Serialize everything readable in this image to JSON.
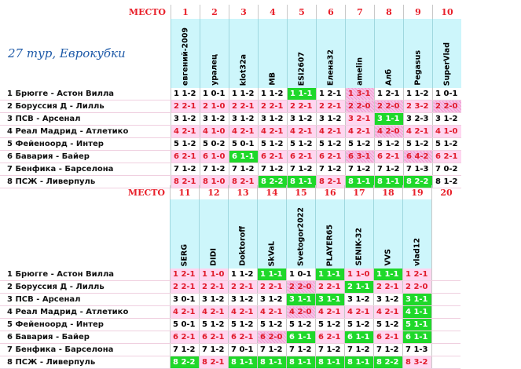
{
  "title": "27 тур,    Еврокубки",
  "mesto_label": "МЕСТО",
  "matches": [
    "1 Брюгге - Астон Вилла",
    "2 Боруссия Д - Лилль",
    "3 ПСВ - Арсенал",
    "4 Реал Мадрид - Атлетико",
    "5 Фейеноорд - Интер",
    "6 Бавария - Байер",
    "7 Бенфика - Барселона",
    "8 ПСЖ - Ливерпуль"
  ],
  "block1": {
    "places": [
      "1",
      "2",
      "3",
      "4",
      "5",
      "6",
      "7",
      "8",
      "9",
      "10"
    ],
    "players": [
      "евгений-2009",
      "уралец",
      "klot32a",
      "MB",
      "ESI2607",
      "Елена32",
      "amelin",
      "Алб",
      "Pegasus",
      "SuperVlad"
    ],
    "rows": [
      [
        [
          "1 1-2",
          "w"
        ],
        [
          "1 0-1",
          "w"
        ],
        [
          "1 1-2",
          "w"
        ],
        [
          "1 1-2",
          "w"
        ],
        [
          "1 1-1",
          "g"
        ],
        [
          "1 2-1",
          "w"
        ],
        [
          "1 3-1",
          "h"
        ],
        [
          "1 2-1",
          "w"
        ],
        [
          "1 1-2",
          "w"
        ],
        [
          "1 0-1",
          "w"
        ]
      ],
      [
        [
          "2 2-1",
          "p"
        ],
        [
          "2 1-0",
          "p"
        ],
        [
          "2 2-1",
          "p"
        ],
        [
          "2 2-1",
          "p"
        ],
        [
          "2 2-1",
          "p"
        ],
        [
          "2 2-1",
          "p"
        ],
        [
          "2 2-0",
          "h"
        ],
        [
          "2 2-0",
          "h"
        ],
        [
          "2 3-2",
          "p"
        ],
        [
          "2 2-0",
          "h"
        ]
      ],
      [
        [
          "3 1-2",
          "w"
        ],
        [
          "3 1-2",
          "w"
        ],
        [
          "3 1-2",
          "w"
        ],
        [
          "3 1-2",
          "w"
        ],
        [
          "3 1-2",
          "w"
        ],
        [
          "3 1-2",
          "w"
        ],
        [
          "3 2-1",
          "p"
        ],
        [
          "3 1-1",
          "g"
        ],
        [
          "3 2-3",
          "w"
        ],
        [
          "3 1-2",
          "w"
        ]
      ],
      [
        [
          "4 2-1",
          "p"
        ],
        [
          "4 1-0",
          "p"
        ],
        [
          "4 2-1",
          "p"
        ],
        [
          "4 2-1",
          "p"
        ],
        [
          "4 2-1",
          "p"
        ],
        [
          "4 2-1",
          "p"
        ],
        [
          "4 2-1",
          "p"
        ],
        [
          "4 2-0",
          "h"
        ],
        [
          "4 2-1",
          "p"
        ],
        [
          "4 1-0",
          "p"
        ]
      ],
      [
        [
          "5 1-2",
          "w"
        ],
        [
          "5 0-2",
          "w"
        ],
        [
          "5 0-1",
          "w"
        ],
        [
          "5 1-2",
          "w"
        ],
        [
          "5 1-2",
          "w"
        ],
        [
          "5 1-2",
          "w"
        ],
        [
          "5 1-2",
          "w"
        ],
        [
          "5 1-2",
          "w"
        ],
        [
          "5 1-2",
          "w"
        ],
        [
          "5 1-2",
          "w"
        ]
      ],
      [
        [
          "6 2-1",
          "p"
        ],
        [
          "6 1-0",
          "p"
        ],
        [
          "6 1-1",
          "g"
        ],
        [
          "6 2-1",
          "p"
        ],
        [
          "6 2-1",
          "p"
        ],
        [
          "6 2-1",
          "p"
        ],
        [
          "6 3-1",
          "h"
        ],
        [
          "6 2-1",
          "p"
        ],
        [
          "6 4-2",
          "h"
        ],
        [
          "6 2-1",
          "p"
        ]
      ],
      [
        [
          "7 1-2",
          "w"
        ],
        [
          "7 1-2",
          "w"
        ],
        [
          "7 1-2",
          "w"
        ],
        [
          "7 1-2",
          "w"
        ],
        [
          "7 1-2",
          "w"
        ],
        [
          "7 1-2",
          "w"
        ],
        [
          "7 1-2",
          "w"
        ],
        [
          "7 1-2",
          "w"
        ],
        [
          "7 1-3",
          "w"
        ],
        [
          "7 0-2",
          "w"
        ]
      ],
      [
        [
          "8 2-1",
          "p"
        ],
        [
          "8 1-0",
          "p"
        ],
        [
          "8 2-1",
          "p"
        ],
        [
          "8 2-2",
          "g"
        ],
        [
          "8 1-1",
          "g"
        ],
        [
          "8 2-1",
          "p"
        ],
        [
          "8 1-1",
          "g"
        ],
        [
          "8 1-1",
          "g"
        ],
        [
          "8 2-2",
          "g"
        ],
        [
          "8 1-2",
          "w"
        ]
      ]
    ]
  },
  "block2": {
    "places": [
      "11",
      "12",
      "13",
      "14",
      "15",
      "16",
      "17",
      "18",
      "19",
      "20"
    ],
    "players": [
      "SERG",
      "DIDI",
      "Doktoroff",
      "SkVaL",
      "Svetogor2022",
      "PLAYER65",
      "SENIK-32",
      "VVS",
      "vlad12",
      ""
    ],
    "rows": [
      [
        [
          "1 2-1",
          "p"
        ],
        [
          "1 1-0",
          "p"
        ],
        [
          "1 1-2",
          "w"
        ],
        [
          "1 1-1",
          "g"
        ],
        [
          "1 0-1",
          "w"
        ],
        [
          "1 1-1",
          "g"
        ],
        [
          "1 1-0",
          "p"
        ],
        [
          "1 1-1",
          "g"
        ],
        [
          "1 2-1",
          "p"
        ],
        [
          "",
          "e"
        ]
      ],
      [
        [
          "2 2-1",
          "p"
        ],
        [
          "2 2-1",
          "p"
        ],
        [
          "2 2-1",
          "p"
        ],
        [
          "2 2-1",
          "p"
        ],
        [
          "2 2-0",
          "h"
        ],
        [
          "2 2-1",
          "p"
        ],
        [
          "2 1-1",
          "g"
        ],
        [
          "2 2-1",
          "p"
        ],
        [
          "2 2-0",
          "p"
        ],
        [
          "",
          "e"
        ]
      ],
      [
        [
          "3 0-1",
          "w"
        ],
        [
          "3 1-2",
          "w"
        ],
        [
          "3 1-2",
          "w"
        ],
        [
          "3 1-2",
          "w"
        ],
        [
          "3 1-1",
          "g"
        ],
        [
          "3 1-1",
          "g"
        ],
        [
          "3 1-2",
          "w"
        ],
        [
          "3 1-2",
          "w"
        ],
        [
          "3 1-1",
          "g"
        ],
        [
          "",
          "e"
        ]
      ],
      [
        [
          "4 2-1",
          "p"
        ],
        [
          "4 2-1",
          "p"
        ],
        [
          "4 2-1",
          "p"
        ],
        [
          "4 2-1",
          "p"
        ],
        [
          "4 2-0",
          "h"
        ],
        [
          "4 2-1",
          "p"
        ],
        [
          "4 2-1",
          "p"
        ],
        [
          "4 2-1",
          "p"
        ],
        [
          "4 1-1",
          "g"
        ],
        [
          "",
          "e"
        ]
      ],
      [
        [
          "5 0-1",
          "w"
        ],
        [
          "5 1-2",
          "w"
        ],
        [
          "5 1-2",
          "w"
        ],
        [
          "5 1-2",
          "w"
        ],
        [
          "5 1-2",
          "w"
        ],
        [
          "5 1-2",
          "w"
        ],
        [
          "5 1-2",
          "w"
        ],
        [
          "5 1-2",
          "w"
        ],
        [
          "5 1-1",
          "g"
        ],
        [
          "",
          "e"
        ]
      ],
      [
        [
          "6 2-1",
          "p"
        ],
        [
          "6 2-1",
          "p"
        ],
        [
          "6 2-1",
          "p"
        ],
        [
          "6 2-0",
          "h"
        ],
        [
          "6 1-1",
          "g"
        ],
        [
          "6 2-1",
          "p"
        ],
        [
          "6 1-1",
          "g"
        ],
        [
          "6 2-1",
          "p"
        ],
        [
          "6 1-1",
          "g"
        ],
        [
          "",
          "e"
        ]
      ],
      [
        [
          "7 1-2",
          "w"
        ],
        [
          "7 1-2",
          "w"
        ],
        [
          "7 0-1",
          "w"
        ],
        [
          "7 1-2",
          "w"
        ],
        [
          "7 1-2",
          "w"
        ],
        [
          "7 1-2",
          "w"
        ],
        [
          "7 1-2",
          "w"
        ],
        [
          "7 1-2",
          "w"
        ],
        [
          "7 1-3",
          "w"
        ],
        [
          "",
          "e"
        ]
      ],
      [
        [
          "8 2-2",
          "g"
        ],
        [
          "8 2-1",
          "p"
        ],
        [
          "8 1-1",
          "g"
        ],
        [
          "8 1-1",
          "g"
        ],
        [
          "8 1-1",
          "g"
        ],
        [
          "8 1-1",
          "g"
        ],
        [
          "8 1-1",
          "g"
        ],
        [
          "8 2-2",
          "g"
        ],
        [
          "8 3-2",
          "p"
        ],
        [
          "",
          "e"
        ]
      ]
    ]
  }
}
